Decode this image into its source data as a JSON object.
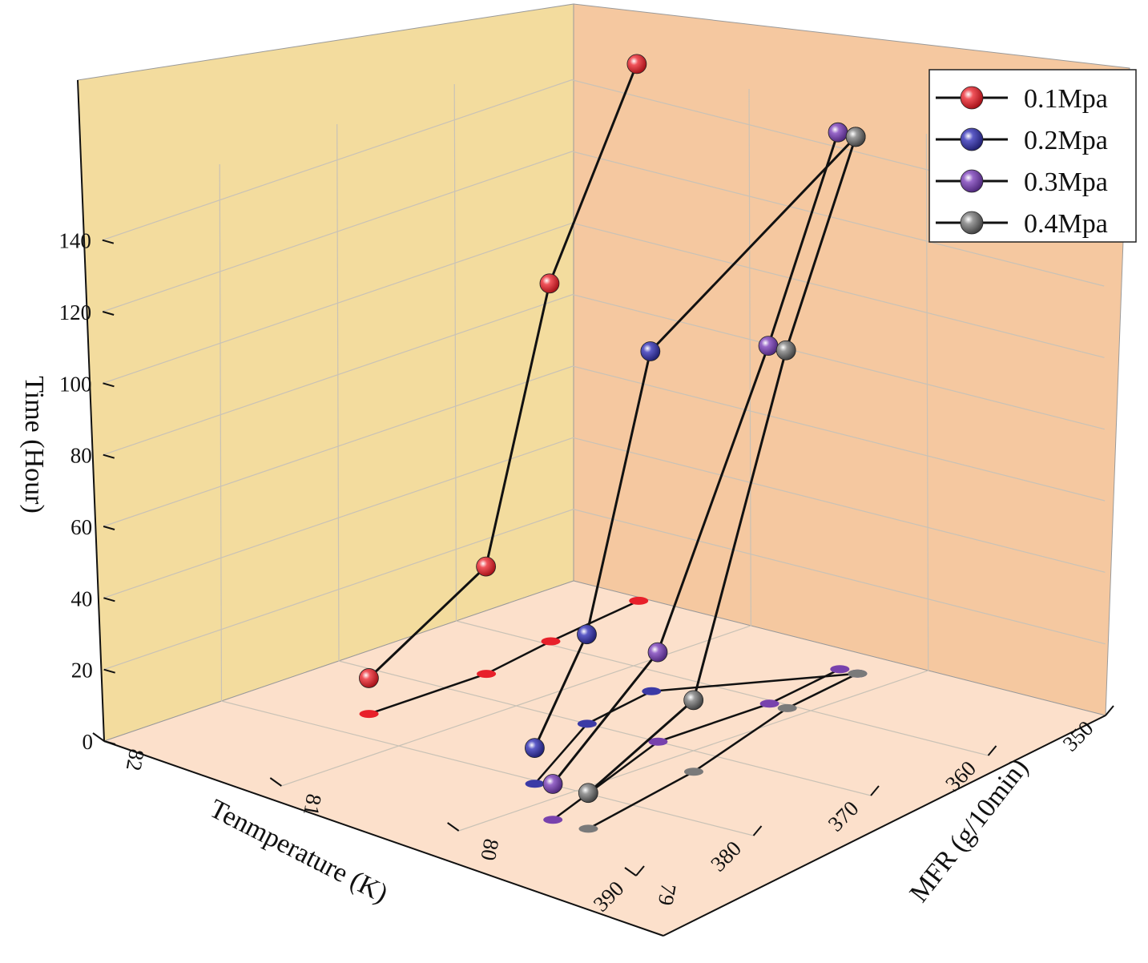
{
  "chart_data": {
    "type": "scatter3d",
    "title": "",
    "axes": {
      "temperature": {
        "label": "Tenmperature (K)",
        "range": [
          350,
          390
        ],
        "ticks": [
          "350",
          "360",
          "370",
          "380",
          "390"
        ]
      },
      "mfr": {
        "label": "MFR (g/10min)",
        "range": [
          79,
          82
        ],
        "ticks": [
          "79",
          "80",
          "81",
          "82"
        ]
      },
      "time": {
        "label": "Time (Hour)",
        "range": [
          0,
          150
        ],
        "ticks": [
          "0",
          "20",
          "40",
          "60",
          "80",
          "100",
          "120",
          "140"
        ]
      }
    },
    "grid": true,
    "legend": {
      "position": "top-right",
      "entries": [
        "0.1Mpa",
        "0.2Mpa",
        "0.3Mpa",
        "0.4Mpa"
      ]
    },
    "series": [
      {
        "name": "0.1Mpa",
        "color": "#e8202a",
        "points": [
          {
            "temperature": 376.5,
            "mfr": 81.4,
            "time": 10.0
          },
          {
            "temperature": 366.5,
            "mfr": 81.4,
            "time": 30.0
          },
          {
            "temperature": 359.5,
            "mfr": 81.5,
            "time": 100.0
          },
          {
            "temperature": 350.5,
            "mfr": 81.6,
            "time": 150.0
          }
        ]
      },
      {
        "name": "0.2Mpa",
        "color": "#3b3aa6",
        "points": [
          {
            "temperature": 380.5,
            "mfr": 80.2,
            "time": 10.0
          },
          {
            "temperature": 370.0,
            "mfr": 80.6,
            "time": 25.0
          },
          {
            "temperature": 363.0,
            "mfr": 80.7,
            "time": 95.0
          },
          {
            "temperature": 353.0,
            "mfr": 80.2,
            "time": 150.0
          }
        ]
      },
      {
        "name": "0.3Mpa",
        "color": "#7842ad",
        "points": [
          {
            "temperature": 385.0,
            "mfr": 79.8,
            "time": 10.0
          },
          {
            "temperature": 370.0,
            "mfr": 80.2,
            "time": 25.0
          },
          {
            "temperature": 360.5,
            "mfr": 80.2,
            "time": 100.0
          },
          {
            "temperature": 353.0,
            "mfr": 80.3,
            "time": 150.0
          }
        ]
      },
      {
        "name": "0.4Mpa",
        "color": "#7a7a7a",
        "points": [
          {
            "temperature": 385.0,
            "mfr": 79.6,
            "time": 10.0
          },
          {
            "temperature": 373.0,
            "mfr": 79.8,
            "time": 20.0
          },
          {
            "temperature": 360.5,
            "mfr": 80.1,
            "time": 100.0
          },
          {
            "temperature": 353.0,
            "mfr": 80.2,
            "time": 150.0
          }
        ]
      }
    ]
  }
}
